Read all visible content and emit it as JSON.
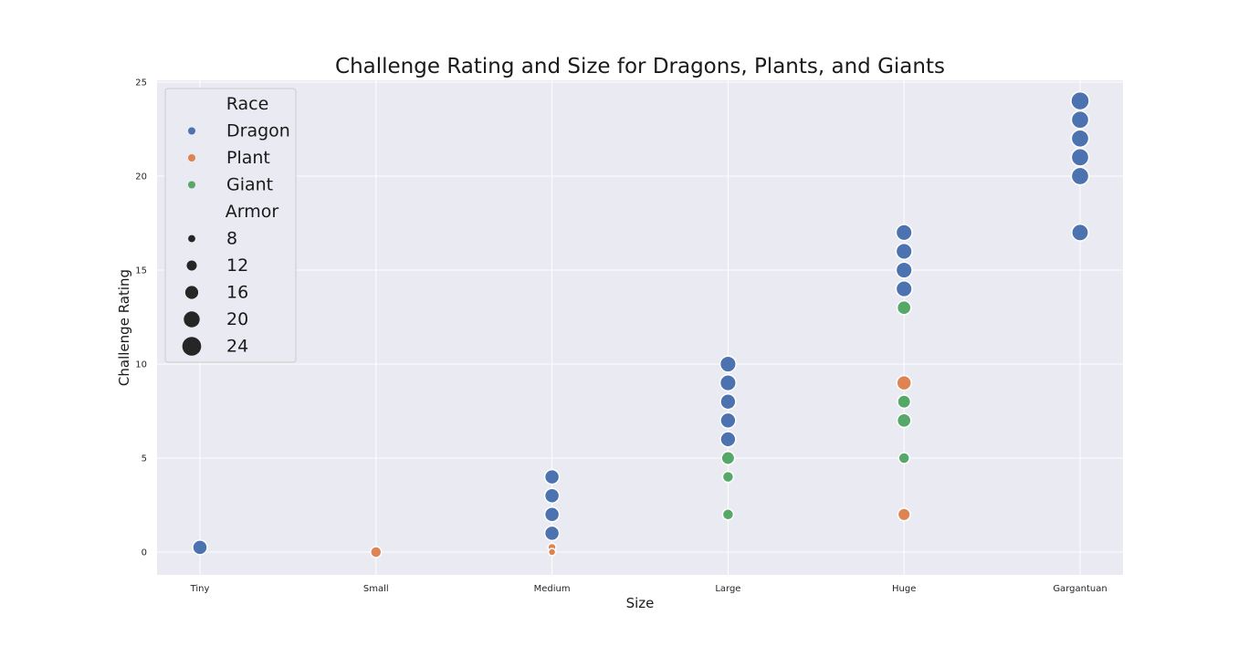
{
  "chart_data": {
    "type": "scatter",
    "title": "Challenge Rating and Size for Dragons, Plants, and Giants",
    "xlabel": "Size",
    "ylabel": "Challenge Rating",
    "categories": [
      "Tiny",
      "Small",
      "Medium",
      "Large",
      "Huge",
      "Gargantuan"
    ],
    "ylim": [
      -1.2,
      25.3
    ],
    "yticks": [
      0,
      5,
      10,
      15,
      20,
      25
    ],
    "grid": true,
    "background": "#eaeaf2",
    "legend": {
      "placement": "top-left",
      "hue_title": "Race",
      "size_title": "Armor",
      "size_levels": [
        8,
        12,
        16,
        20,
        24
      ]
    },
    "series": [
      {
        "name": "Dragon",
        "color": "#4c72b0",
        "points": [
          {
            "x": "Tiny",
            "y": 0.25,
            "armor": 17
          },
          {
            "x": "Medium",
            "y": 1,
            "armor": 17
          },
          {
            "x": "Medium",
            "y": 2,
            "armor": 17
          },
          {
            "x": "Medium",
            "y": 3,
            "armor": 17
          },
          {
            "x": "Medium",
            "y": 4,
            "armor": 17
          },
          {
            "x": "Large",
            "y": 6,
            "armor": 18
          },
          {
            "x": "Large",
            "y": 7,
            "armor": 18
          },
          {
            "x": "Large",
            "y": 8,
            "armor": 18
          },
          {
            "x": "Large",
            "y": 9,
            "armor": 19
          },
          {
            "x": "Large",
            "y": 10,
            "armor": 19
          },
          {
            "x": "Huge",
            "y": 14,
            "armor": 19
          },
          {
            "x": "Huge",
            "y": 15,
            "armor": 19
          },
          {
            "x": "Huge",
            "y": 16,
            "armor": 19
          },
          {
            "x": "Huge",
            "y": 17,
            "armor": 19
          },
          {
            "x": "Gargantuan",
            "y": 17,
            "armor": 20
          },
          {
            "x": "Gargantuan",
            "y": 20,
            "armor": 21
          },
          {
            "x": "Gargantuan",
            "y": 21,
            "armor": 21
          },
          {
            "x": "Gargantuan",
            "y": 22,
            "armor": 21
          },
          {
            "x": "Gargantuan",
            "y": 23,
            "armor": 21
          },
          {
            "x": "Gargantuan",
            "y": 24,
            "armor": 22
          }
        ]
      },
      {
        "name": "Plant",
        "color": "#dd8452",
        "points": [
          {
            "x": "Small",
            "y": 0,
            "armor": 12
          },
          {
            "x": "Medium",
            "y": 0.25,
            "armor": 8
          },
          {
            "x": "Medium",
            "y": 0,
            "armor": 7
          },
          {
            "x": "Huge",
            "y": 9,
            "armor": 17
          },
          {
            "x": "Huge",
            "y": 2,
            "armor": 14
          }
        ]
      },
      {
        "name": "Giant",
        "color": "#55a868",
        "points": [
          {
            "x": "Large",
            "y": 2,
            "armor": 12
          },
          {
            "x": "Large",
            "y": 4,
            "armor": 12
          },
          {
            "x": "Large",
            "y": 5,
            "armor": 15
          },
          {
            "x": "Huge",
            "y": 5,
            "armor": 12
          },
          {
            "x": "Huge",
            "y": 7,
            "armor": 16
          },
          {
            "x": "Huge",
            "y": 8,
            "armor": 15
          },
          {
            "x": "Huge",
            "y": 13,
            "armor": 16
          }
        ]
      }
    ]
  }
}
